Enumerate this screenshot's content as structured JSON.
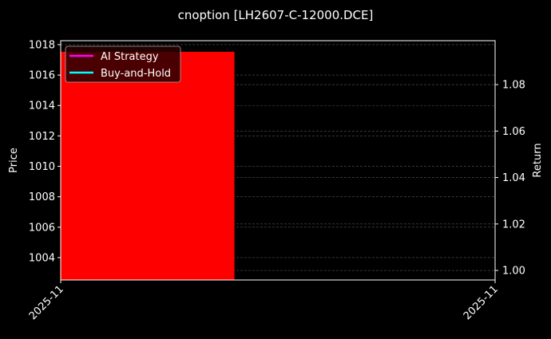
{
  "chart_data": {
    "type": "bar",
    "title": "cnoption [LH2607-C-12000.DCE]",
    "ylabel": "Price",
    "y2label": "Return",
    "ylim": [
      1002.53,
      1018.26
    ],
    "y2lim": [
      0.9959,
      1.0989
    ],
    "yticks": [
      1004,
      1006,
      1008,
      1010,
      1012,
      1014,
      1016,
      1018
    ],
    "y2ticks": [
      "1.00",
      "1.02",
      "1.04",
      "1.06",
      "1.08"
    ],
    "xticks": [
      "2025-11",
      "2025-11"
    ],
    "bars": [
      {
        "x_start": 0,
        "x_end": 0.4,
        "bottom": 1002.53,
        "top": 1017.53,
        "color": "#ff0000"
      }
    ],
    "legend": {
      "placement": "top-left",
      "entries": [
        {
          "name": "AI Strategy",
          "color": "#ff00ff"
        },
        {
          "name": "Buy-and-Hold",
          "color": "#00ffff"
        }
      ]
    },
    "grid": true
  }
}
